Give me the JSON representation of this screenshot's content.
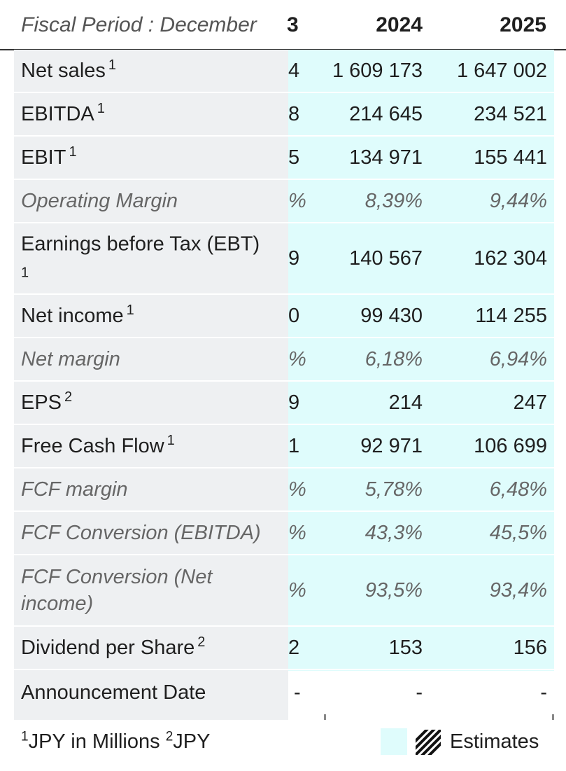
{
  "header": {
    "period_label": "Fiscal Period : December",
    "col1": "3",
    "col2": "2024",
    "col3": "2025"
  },
  "rows": [
    {
      "label": "Net sales",
      "note": "1",
      "c1": "4",
      "c2": "1 609 173",
      "c3": "1 647 002"
    },
    {
      "label": "EBITDA",
      "note": "1",
      "c1": "8",
      "c2": "214 645",
      "c3": "234 521"
    },
    {
      "label": "EBIT",
      "note": "1",
      "c1": "5",
      "c2": "134 971",
      "c3": "155 441"
    },
    {
      "label": "Operating Margin",
      "c1": "%",
      "c2": "8,39%",
      "c3": "9,44%"
    },
    {
      "label": "Earnings before Tax (EBT)",
      "note": "1",
      "c1": "9",
      "c2": "140 567",
      "c3": "162 304"
    },
    {
      "label": "Net income",
      "note": "1",
      "c1": "0",
      "c2": "99 430",
      "c3": "114 255"
    },
    {
      "label": "Net margin",
      "c1": "%",
      "c2": "6,18%",
      "c3": "6,94%"
    },
    {
      "label": "EPS",
      "note": "2",
      "c1": "9",
      "c2": "214",
      "c3": "247"
    },
    {
      "label": "Free Cash Flow",
      "note": "1",
      "c1": "1",
      "c2": "92 971",
      "c3": "106 699"
    },
    {
      "label": "FCF margin",
      "c1": "%",
      "c2": "5,78%",
      "c3": "6,48%"
    },
    {
      "label": "FCF Conversion (EBITDA)",
      "c1": "%",
      "c2": "43,3%",
      "c3": "45,5%"
    },
    {
      "label": "FCF Conversion (Net income)",
      "c1": "%",
      "c2": "93,5%",
      "c3": "93,4%"
    },
    {
      "label": "Dividend per Share",
      "note": "2",
      "c1": "2",
      "c2": "153",
      "c3": "156"
    },
    {
      "label": "Announcement Date",
      "c1": "-",
      "c2": "-",
      "c3": "-"
    }
  ],
  "footer": {
    "note1_mark": "1",
    "note1_text": "JPY in Millions",
    "note2_mark": "2",
    "note2_text": "JPY",
    "legend_label": "Estimates",
    "legend_icon": "hatch-icon",
    "estimate_color": "#dffcfc"
  }
}
